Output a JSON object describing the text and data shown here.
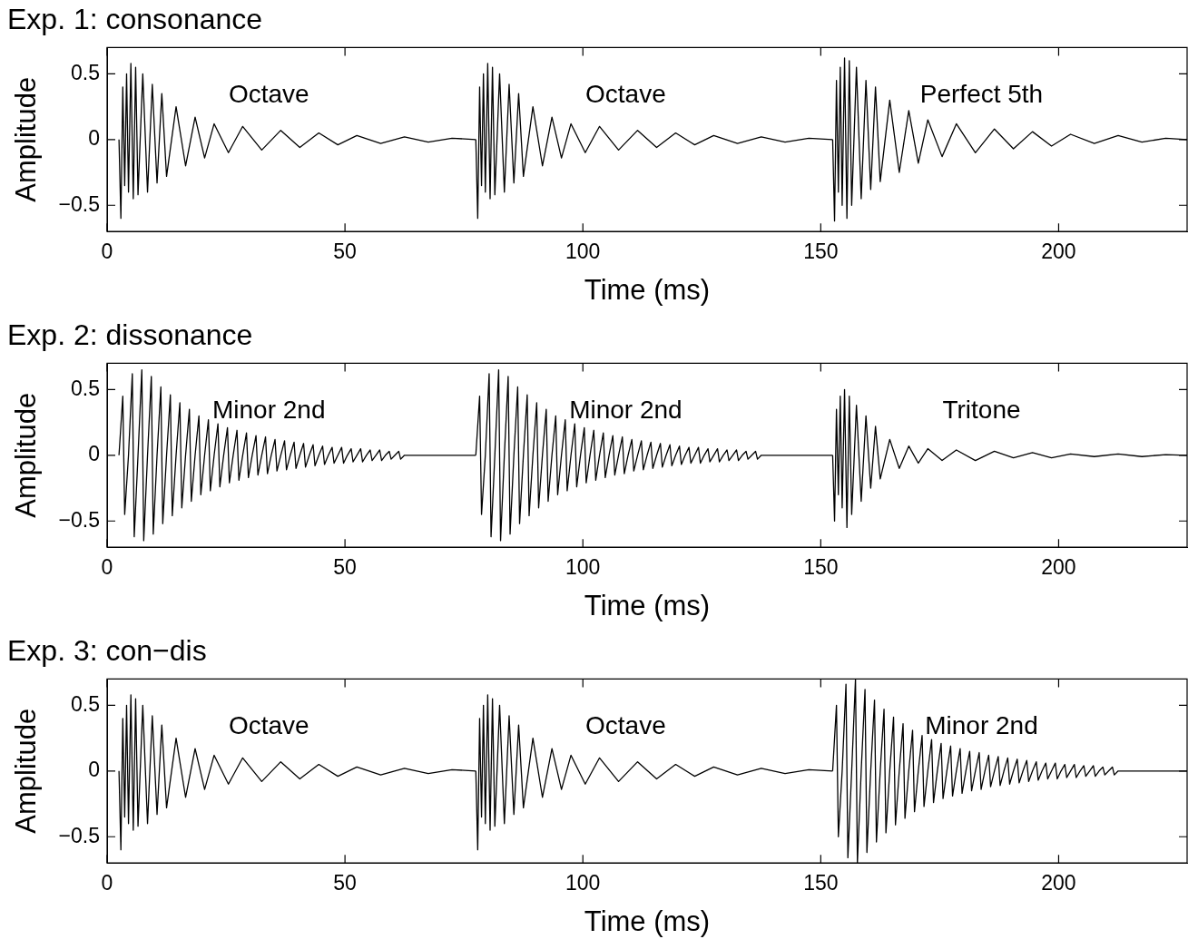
{
  "chart_data": [
    {
      "type": "line",
      "title": "Exp. 1: consonance",
      "xlabel": "Time (ms)",
      "ylabel": "Amplitude",
      "xlim": [
        0,
        227
      ],
      "ylim": [
        -0.7,
        0.7
      ],
      "xticks": [
        0,
        50,
        100,
        150,
        200
      ],
      "yticks": [
        -0.5,
        0,
        0.5
      ],
      "marker": "none",
      "series": [
        {
          "color": "#000000",
          "x": [
            2.5,
            2.9,
            3.3,
            3.7,
            4.1,
            4.5,
            5,
            5.5,
            6,
            6.5,
            7.5,
            8.5,
            9.5,
            10.5,
            11.5,
            12.5,
            14.5,
            16.5,
            18.5,
            20.5,
            22.5,
            25.5,
            28.5,
            32.5,
            36.5,
            40.5,
            44.5,
            48.5,
            52.5,
            57.5,
            62.5,
            67.5,
            72.5,
            77.5
          ],
          "values": [
            0,
            -0.6,
            0.4,
            -0.35,
            0.5,
            -0.4,
            0.58,
            -0.45,
            0.55,
            -0.42,
            0.5,
            -0.4,
            0.42,
            -0.33,
            0.35,
            -0.28,
            0.25,
            -0.2,
            0.17,
            -0.14,
            0.12,
            -0.1,
            0.1,
            -0.08,
            0.07,
            -0.06,
            0.05,
            -0.04,
            0.03,
            -0.03,
            0.02,
            -0.02,
            0.01,
            0
          ]
        },
        {
          "color": "#000000",
          "x": [
            77.5,
            77.9,
            78.3,
            78.7,
            79.1,
            79.5,
            80,
            80.5,
            81,
            81.5,
            82.5,
            83.5,
            84.5,
            85.5,
            86.5,
            87.5,
            89.5,
            91.5,
            93.5,
            95.5,
            97.5,
            100.5,
            103.5,
            107.5,
            111.5,
            115.5,
            119.5,
            123.5,
            127.5,
            132.5,
            137.5,
            142.5,
            147.5,
            152.5
          ],
          "values": [
            0,
            -0.6,
            0.4,
            -0.35,
            0.5,
            -0.4,
            0.58,
            -0.45,
            0.55,
            -0.42,
            0.5,
            -0.4,
            0.42,
            -0.33,
            0.35,
            -0.28,
            0.25,
            -0.2,
            0.17,
            -0.14,
            0.12,
            -0.1,
            0.1,
            -0.08,
            0.07,
            -0.06,
            0.05,
            -0.04,
            0.03,
            -0.03,
            0.02,
            -0.02,
            0.01,
            0
          ]
        },
        {
          "color": "#000000",
          "x": [
            152.5,
            152.9,
            153.3,
            153.7,
            154.1,
            154.5,
            155,
            155.5,
            156,
            156.5,
            157.5,
            158.5,
            159.5,
            160.5,
            161.5,
            162.5,
            164.5,
            166.5,
            168.5,
            170.5,
            172.5,
            175.5,
            178.5,
            182.5,
            186.5,
            190.5,
            194.5,
            198.5,
            202.5,
            207.5,
            212.5,
            217.5,
            222.5,
            227
          ],
          "values": [
            0,
            -0.62,
            0.45,
            -0.4,
            0.55,
            -0.5,
            0.62,
            -0.6,
            0.6,
            -0.5,
            0.55,
            -0.45,
            0.45,
            -0.38,
            0.4,
            -0.32,
            0.3,
            -0.25,
            0.22,
            -0.18,
            0.15,
            -0.13,
            0.12,
            -0.1,
            0.08,
            -0.07,
            0.06,
            -0.05,
            0.04,
            -0.03,
            0.03,
            -0.02,
            0.01,
            0
          ]
        }
      ],
      "annotations": [
        "Octave",
        "Octave",
        "Perfect 5th"
      ]
    },
    {
      "type": "line",
      "title": "Exp. 2: dissonance",
      "xlabel": "Time (ms)",
      "ylabel": "Amplitude",
      "xlim": [
        0,
        227
      ],
      "ylim": [
        -0.7,
        0.7
      ],
      "xticks": [
        0,
        50,
        100,
        150,
        200
      ],
      "yticks": [
        -0.5,
        0,
        0.5
      ],
      "marker": "none",
      "series": [
        {
          "color": "#000000",
          "x": [
            2.5,
            3.3,
            3.7,
            4.5,
            5.3,
            5.7,
            6.5,
            7.3,
            7.7,
            8.5,
            9.3,
            9.7,
            10.5,
            11.3,
            11.7,
            12.5,
            13.3,
            13.7,
            14.5,
            15.3,
            15.7,
            16.5,
            17.3,
            17.7,
            18.5,
            19.3,
            19.7,
            20.5,
            21.3,
            21.7,
            22.5,
            23.3,
            23.7,
            24.5,
            25.3,
            25.7,
            26.5,
            27.3,
            27.7,
            28.5,
            29.3,
            29.7,
            30.5,
            31.3,
            31.7,
            32.5,
            33.3,
            33.7,
            34.5,
            35.3,
            35.7,
            36.5,
            37.3,
            37.7,
            38.5,
            39.3,
            39.7,
            40.5,
            41.3,
            41.7,
            42.5,
            43.3,
            43.7,
            44.5,
            45.3,
            45.7,
            46.5,
            47.3,
            47.7,
            48.5,
            49.3,
            49.7,
            50.5,
            51.3,
            51.7,
            52.5,
            53.3,
            53.7,
            54.5,
            55.3,
            55.7,
            56.5,
            57.3,
            57.7,
            58.5,
            59.3,
            59.7,
            60.5,
            61.3,
            61.7,
            62.5,
            77.5
          ],
          "values": [
            0,
            0.45,
            -0.45,
            0,
            0.62,
            -0.62,
            0,
            0.65,
            -0.65,
            0,
            0.6,
            -0.6,
            0,
            0.52,
            -0.52,
            0,
            0.46,
            -0.46,
            0,
            0.4,
            -0.4,
            0,
            0.35,
            -0.35,
            0,
            0.3,
            -0.3,
            0,
            0.27,
            -0.27,
            0,
            0.24,
            -0.24,
            0,
            0.21,
            -0.21,
            0,
            0.19,
            -0.19,
            0,
            0.17,
            -0.17,
            0,
            0.15,
            -0.15,
            0,
            0.14,
            -0.14,
            0,
            0.12,
            -0.12,
            0,
            0.11,
            -0.11,
            0,
            0.1,
            -0.1,
            0,
            0.09,
            -0.09,
            0,
            0.08,
            -0.08,
            0,
            0.07,
            -0.07,
            0,
            0.06,
            -0.06,
            0,
            0.06,
            -0.06,
            0,
            0.05,
            -0.05,
            0,
            0.05,
            -0.05,
            0,
            0.04,
            -0.04,
            0,
            0.04,
            -0.04,
            0,
            0.03,
            -0.03,
            0,
            0.03,
            -0.03,
            0,
            0
          ]
        },
        {
          "color": "#000000",
          "x": [
            77.5,
            78.3,
            78.7,
            79.5,
            80.3,
            80.7,
            81.5,
            82.3,
            82.7,
            83.5,
            84.3,
            84.7,
            85.5,
            86.3,
            86.7,
            87.5,
            88.3,
            88.7,
            89.5,
            90.3,
            90.7,
            91.5,
            92.3,
            92.7,
            93.5,
            94.3,
            94.7,
            95.5,
            96.3,
            96.7,
            97.5,
            98.3,
            98.7,
            99.5,
            100.3,
            100.7,
            101.5,
            102.3,
            102.7,
            103.5,
            104.3,
            104.7,
            105.5,
            106.3,
            106.7,
            107.5,
            108.3,
            108.7,
            109.5,
            110.3,
            110.7,
            111.5,
            112.3,
            112.7,
            113.5,
            114.3,
            114.7,
            115.5,
            116.3,
            116.7,
            117.5,
            118.3,
            118.7,
            119.5,
            120.3,
            120.7,
            121.5,
            122.3,
            122.7,
            123.5,
            124.3,
            124.7,
            125.5,
            126.3,
            126.7,
            127.5,
            128.3,
            128.7,
            129.5,
            130.3,
            130.7,
            131.5,
            132.3,
            132.7,
            133.5,
            134.3,
            134.7,
            135.5,
            136.3,
            136.7,
            137.5,
            152.5
          ],
          "values": [
            0,
            0.45,
            -0.45,
            0,
            0.62,
            -0.62,
            0,
            0.65,
            -0.65,
            0,
            0.6,
            -0.6,
            0,
            0.52,
            -0.52,
            0,
            0.46,
            -0.46,
            0,
            0.4,
            -0.4,
            0,
            0.35,
            -0.35,
            0,
            0.3,
            -0.3,
            0,
            0.27,
            -0.27,
            0,
            0.24,
            -0.24,
            0,
            0.21,
            -0.21,
            0,
            0.19,
            -0.19,
            0,
            0.17,
            -0.17,
            0,
            0.15,
            -0.15,
            0,
            0.14,
            -0.14,
            0,
            0.12,
            -0.12,
            0,
            0.11,
            -0.11,
            0,
            0.1,
            -0.1,
            0,
            0.09,
            -0.09,
            0,
            0.08,
            -0.08,
            0,
            0.07,
            -0.07,
            0,
            0.06,
            -0.06,
            0,
            0.06,
            -0.06,
            0,
            0.05,
            -0.05,
            0,
            0.05,
            -0.05,
            0,
            0.04,
            -0.04,
            0,
            0.04,
            -0.04,
            0,
            0.03,
            -0.03,
            0,
            0.03,
            -0.03,
            0,
            0
          ]
        },
        {
          "color": "#000000",
          "x": [
            152.5,
            152.9,
            153.3,
            153.7,
            154.1,
            154.5,
            155,
            155.5,
            156,
            156.5,
            157.5,
            158.5,
            159.5,
            160.5,
            161.5,
            162.5,
            164.5,
            166.5,
            168.5,
            170.5,
            172.5,
            175.5,
            178.5,
            182.5,
            186.5,
            190.5,
            194.5,
            198.5,
            202.5,
            207.5,
            212.5,
            217.5,
            222.5,
            227
          ],
          "values": [
            0,
            -0.5,
            0.35,
            -0.3,
            0.45,
            -0.4,
            0.5,
            -0.55,
            0.45,
            -0.45,
            0.38,
            -0.35,
            0.3,
            -0.25,
            0.22,
            -0.18,
            0.12,
            -0.1,
            0.07,
            -0.06,
            0.05,
            -0.04,
            0.04,
            -0.04,
            0.03,
            -0.02,
            0.02,
            -0.02,
            0.01,
            -0.01,
            0.01,
            -0.01,
            0.005,
            0
          ]
        }
      ],
      "annotations": [
        "Minor 2nd",
        "Minor 2nd",
        "Tritone"
      ]
    },
    {
      "type": "line",
      "title": "Exp. 3: con−dis",
      "xlabel": "Time (ms)",
      "ylabel": "Amplitude",
      "xlim": [
        0,
        227
      ],
      "ylim": [
        -0.7,
        0.7
      ],
      "xticks": [
        0,
        50,
        100,
        150,
        200
      ],
      "yticks": [
        -0.5,
        0,
        0.5
      ],
      "marker": "none",
      "series": [
        {
          "color": "#000000",
          "x": [
            2.5,
            2.9,
            3.3,
            3.7,
            4.1,
            4.5,
            5,
            5.5,
            6,
            6.5,
            7.5,
            8.5,
            9.5,
            10.5,
            11.5,
            12.5,
            14.5,
            16.5,
            18.5,
            20.5,
            22.5,
            25.5,
            28.5,
            32.5,
            36.5,
            40.5,
            44.5,
            48.5,
            52.5,
            57.5,
            62.5,
            67.5,
            72.5,
            77.5
          ],
          "values": [
            0,
            -0.6,
            0.4,
            -0.35,
            0.5,
            -0.4,
            0.58,
            -0.45,
            0.55,
            -0.42,
            0.5,
            -0.4,
            0.42,
            -0.33,
            0.35,
            -0.28,
            0.25,
            -0.2,
            0.17,
            -0.14,
            0.12,
            -0.1,
            0.1,
            -0.08,
            0.07,
            -0.06,
            0.05,
            -0.04,
            0.03,
            -0.03,
            0.02,
            -0.02,
            0.01,
            0
          ]
        },
        {
          "color": "#000000",
          "x": [
            77.5,
            77.9,
            78.3,
            78.7,
            79.1,
            79.5,
            80,
            80.5,
            81,
            81.5,
            82.5,
            83.5,
            84.5,
            85.5,
            86.5,
            87.5,
            89.5,
            91.5,
            93.5,
            95.5,
            97.5,
            100.5,
            103.5,
            107.5,
            111.5,
            115.5,
            119.5,
            123.5,
            127.5,
            132.5,
            137.5,
            142.5,
            147.5,
            152.5
          ],
          "values": [
            0,
            -0.6,
            0.4,
            -0.35,
            0.5,
            -0.4,
            0.58,
            -0.45,
            0.55,
            -0.42,
            0.5,
            -0.4,
            0.42,
            -0.33,
            0.35,
            -0.28,
            0.25,
            -0.2,
            0.17,
            -0.14,
            0.12,
            -0.1,
            0.1,
            -0.08,
            0.07,
            -0.06,
            0.05,
            -0.04,
            0.03,
            -0.03,
            0.02,
            -0.02,
            0.01,
            0
          ]
        },
        {
          "color": "#000000",
          "x": [
            152.5,
            153.3,
            153.7,
            154.5,
            155.3,
            155.7,
            156.5,
            157.3,
            157.7,
            158.5,
            159.3,
            159.7,
            160.5,
            161.3,
            161.7,
            162.5,
            163.3,
            163.7,
            164.5,
            165.3,
            165.7,
            166.5,
            167.3,
            167.7,
            168.5,
            169.3,
            169.7,
            170.5,
            171.3,
            171.7,
            172.5,
            173.3,
            173.7,
            174.5,
            175.3,
            175.7,
            176.5,
            177.3,
            177.7,
            178.5,
            179.3,
            179.7,
            180.5,
            181.3,
            181.7,
            182.5,
            183.3,
            183.7,
            184.5,
            185.3,
            185.7,
            186.5,
            187.3,
            187.7,
            188.5,
            189.3,
            189.7,
            190.5,
            191.3,
            191.7,
            192.5,
            193.3,
            193.7,
            194.5,
            195.3,
            195.7,
            196.5,
            197.3,
            197.7,
            198.5,
            199.3,
            199.7,
            200.5,
            201.3,
            201.7,
            202.5,
            203.3,
            203.7,
            204.5,
            205.3,
            205.7,
            206.5,
            207.3,
            207.7,
            208.5,
            209.3,
            209.7,
            210.5,
            211.3,
            211.7,
            212.5,
            227
          ],
          "values": [
            0,
            0.5,
            -0.5,
            0,
            0.66,
            -0.66,
            0,
            0.7,
            -0.7,
            0,
            0.62,
            -0.62,
            0,
            0.54,
            -0.54,
            0,
            0.47,
            -0.47,
            0,
            0.41,
            -0.41,
            0,
            0.36,
            -0.36,
            0,
            0.31,
            -0.31,
            0,
            0.27,
            -0.27,
            0,
            0.24,
            -0.24,
            0,
            0.21,
            -0.21,
            0,
            0.19,
            -0.19,
            0,
            0.17,
            -0.17,
            0,
            0.15,
            -0.15,
            0,
            0.14,
            -0.14,
            0,
            0.12,
            -0.12,
            0,
            0.11,
            -0.11,
            0,
            0.1,
            -0.1,
            0,
            0.09,
            -0.09,
            0,
            0.08,
            -0.08,
            0,
            0.07,
            -0.07,
            0,
            0.06,
            -0.06,
            0,
            0.06,
            -0.06,
            0,
            0.05,
            -0.05,
            0,
            0.05,
            -0.05,
            0,
            0.04,
            -0.04,
            0,
            0.04,
            -0.04,
            0,
            0.03,
            -0.03,
            0,
            0.03,
            -0.03,
            0,
            0
          ]
        }
      ],
      "annotations": [
        "Octave",
        "Octave",
        "Minor 2nd"
      ]
    }
  ]
}
